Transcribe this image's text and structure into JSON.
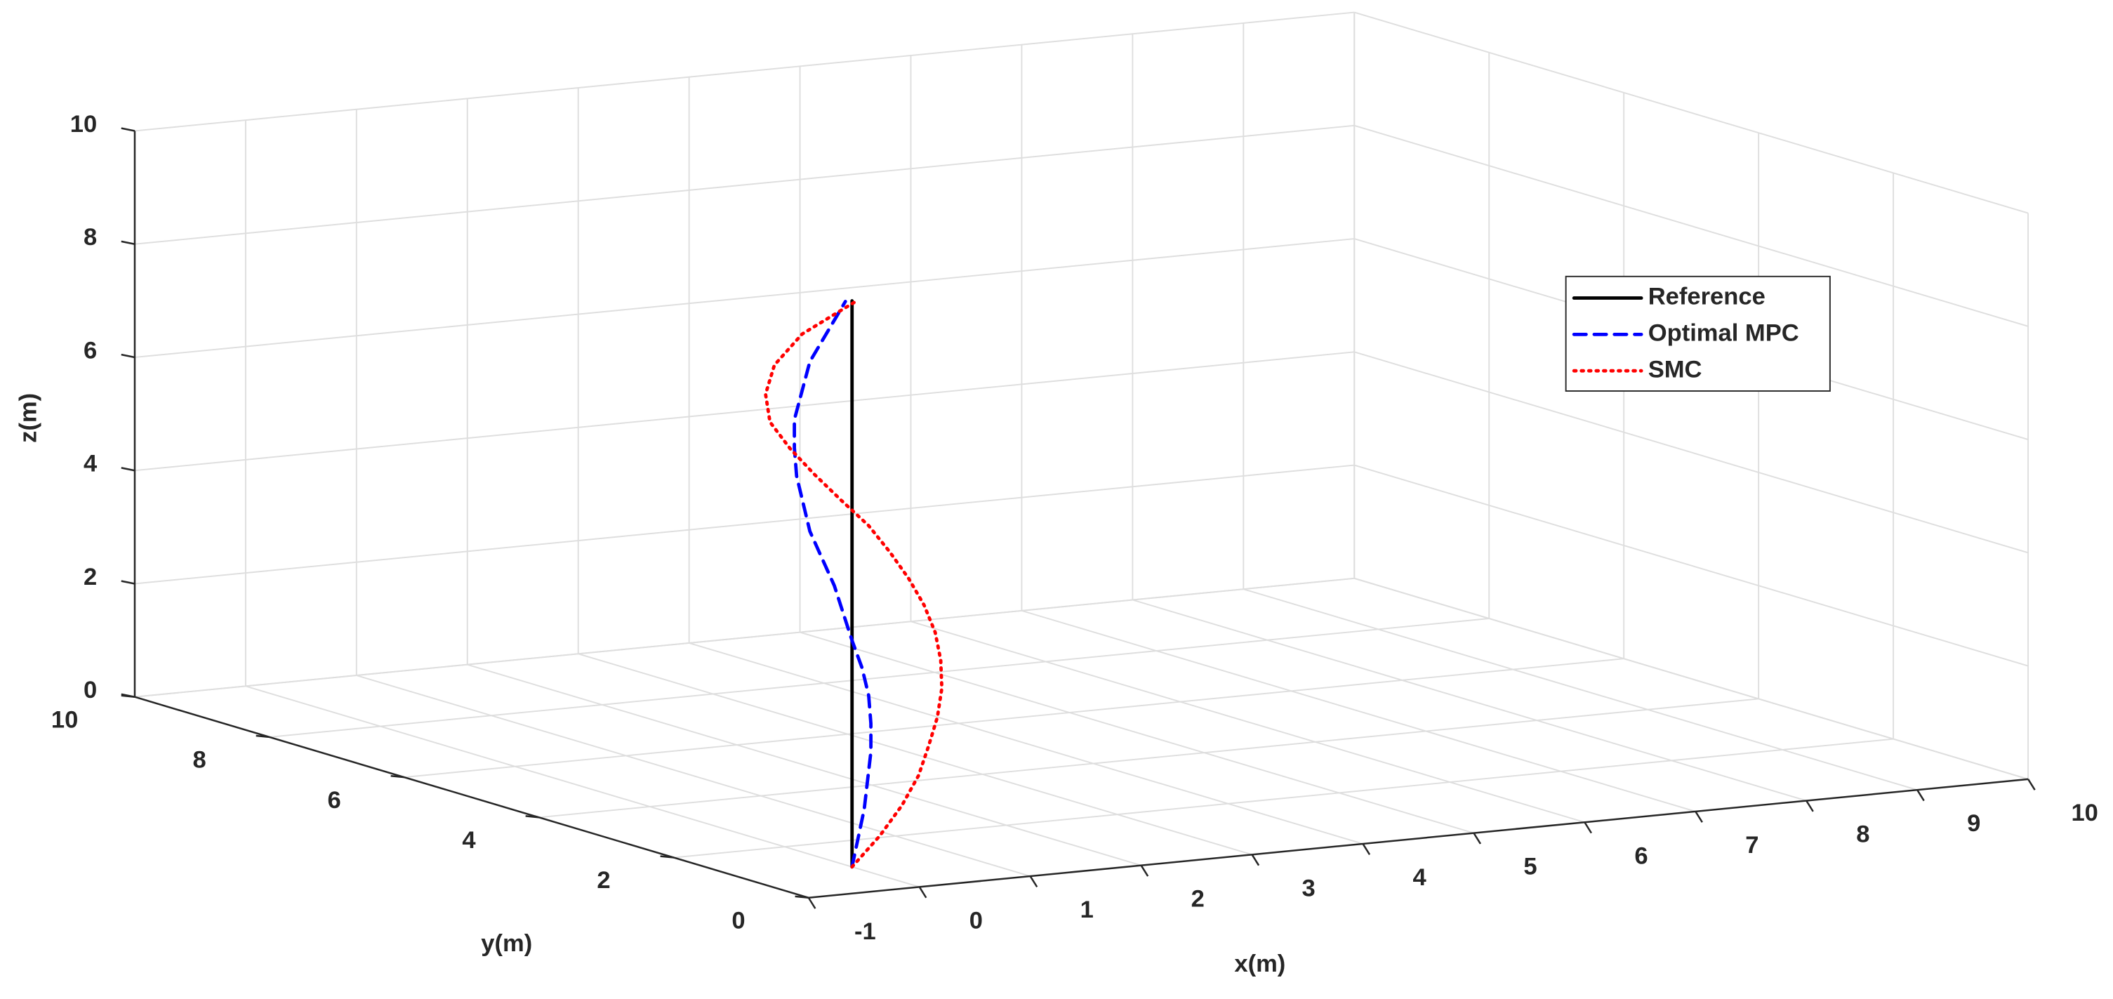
{
  "chart_data": {
    "type": "line3d",
    "xlabel": "x(m)",
    "ylabel": "y(m)",
    "zlabel": "z(m)",
    "xlim": [
      -1,
      10
    ],
    "ylim": [
      0,
      10
    ],
    "zlim": [
      0,
      10
    ],
    "xticks": [
      -1,
      0,
      1,
      2,
      3,
      4,
      5,
      6,
      7,
      8,
      9,
      10
    ],
    "yticks": [
      0,
      2,
      4,
      6,
      8,
      10
    ],
    "zticks": [
      0,
      2,
      4,
      6,
      8,
      10
    ],
    "grid": true,
    "legend_location": "northeast",
    "series": [
      {
        "name": "Reference",
        "color": "#000000",
        "line_style": "solid",
        "x": [
          0,
          0
        ],
        "y": [
          1,
          1
        ],
        "z": [
          0,
          10
        ]
      },
      {
        "name": "Optimal MPC",
        "color": "#0000ff",
        "line_style": "dashed",
        "x": [
          0,
          0.11,
          0.17,
          0.17,
          0.15,
          0.09,
          0,
          -0.16,
          -0.38,
          -0.5,
          -0.52,
          -0.52,
          -0.38,
          -0.22,
          -0.06
        ],
        "y": [
          1,
          1,
          1,
          1,
          1,
          1,
          1,
          1,
          1,
          1,
          1,
          1,
          1,
          1,
          1
        ],
        "z": [
          0,
          1,
          2,
          2.5,
          3,
          3.5,
          4,
          5,
          6,
          7,
          7.5,
          8,
          9,
          9.5,
          10
        ]
      },
      {
        "name": "SMC",
        "color": "#ff0000",
        "line_style": "dotted",
        "x": [
          0,
          0.25,
          0.45,
          0.6,
          0.69,
          0.77,
          0.81,
          0.8,
          0.75,
          0.65,
          0.51,
          0.34,
          0.15,
          -0.1,
          -0.34,
          -0.56,
          -0.74,
          -0.78,
          -0.7,
          -0.45,
          0.05
        ],
        "y": [
          1,
          1,
          1,
          1,
          1,
          1,
          1,
          1,
          1,
          1,
          1,
          1,
          1,
          1,
          1,
          1,
          1,
          1,
          1,
          1,
          1
        ],
        "z": [
          0,
          0.5,
          1,
          1.5,
          2,
          2.5,
          3,
          3.5,
          4,
          4.5,
          5,
          5.5,
          6,
          6.5,
          7,
          7.5,
          8,
          8.5,
          9,
          9.5,
          10
        ]
      }
    ]
  }
}
